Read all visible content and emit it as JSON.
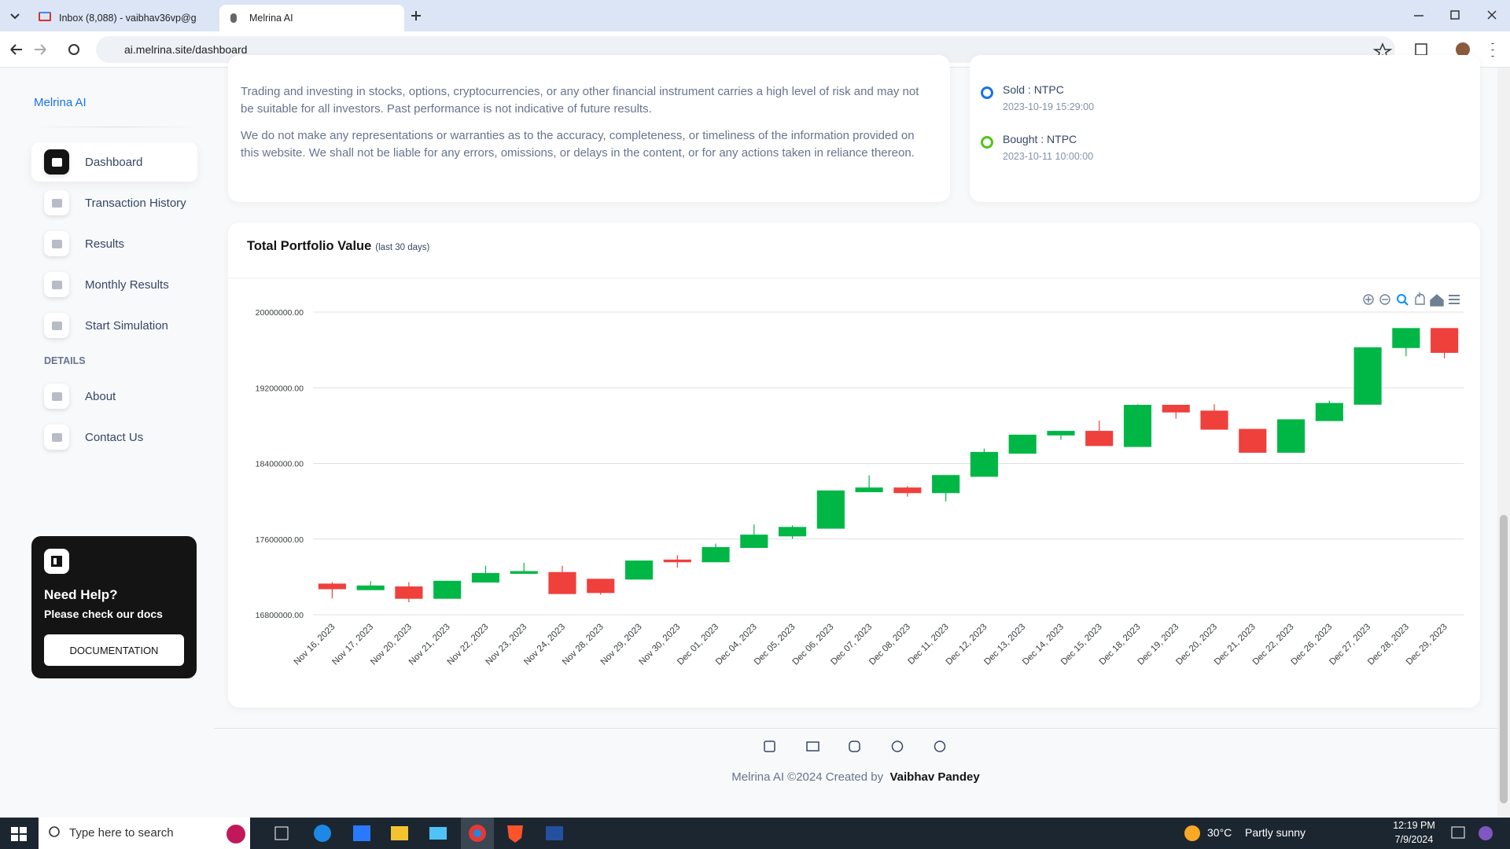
{
  "browser": {
    "tabs": [
      "Inbox (8,088) - vaibhav36vp@g",
      "Melrina AI"
    ],
    "url": "ai.melrina.site/dashboard"
  },
  "sidebar": {
    "brand": "Melrina AI",
    "menu": [
      "Dashboard",
      "Transaction History",
      "Results",
      "Monthly Results",
      "Start Simulation"
    ],
    "section": "DETAILS",
    "details": [
      "About",
      "Contact Us"
    ],
    "help": {
      "title": "Need Help?",
      "text": "Please check our docs",
      "button": "DOCUMENTATION"
    }
  },
  "disclaimer": [
    "Trading and investing in stocks, options, cryptocurrencies, or any other financial instrument carries a high level of risk and may not be suitable for all investors. Past performance is not indicative of future results.",
    "We do not make any representations or warranties as to the accuracy, completeness, or timeliness of the information provided on this website. We shall not be liable for any errors, omissions, or delays in the content, or for any actions taken in reliance thereon."
  ],
  "timeline": [
    {
      "label": "Sold : NTPC",
      "time": "2023-10-19 15:29:00"
    },
    {
      "label": "Bought : NTPC",
      "time": "2023-10-11 10:00:00"
    }
  ],
  "chart_data": {
    "type": "candlestick",
    "title": "Total Portfolio Value",
    "subtitle": "(last 30 days)",
    "categories": [
      "Nov 16, 2023",
      "Nov 17, 2023",
      "Nov 20, 2023",
      "Nov 21, 2023",
      "Nov 22, 2023",
      "Nov 23, 2023",
      "Nov 24, 2023",
      "Nov 28, 2023",
      "Nov 29, 2023",
      "Nov 30, 2023",
      "Dec 01, 2023",
      "Dec 04, 2023",
      "Dec 05, 2023",
      "Dec 06, 2023",
      "Dec 07, 2023",
      "Dec 08, 2023",
      "Dec 11, 2023",
      "Dec 12, 2023",
      "Dec 13, 2023",
      "Dec 14, 2023",
      "Dec 15, 2023",
      "Dec 18, 2023",
      "Dec 19, 2023",
      "Dec 20, 2023",
      "Dec 21, 2023",
      "Dec 22, 2023",
      "Dec 26, 2023",
      "Dec 27, 2023",
      "Dec 28, 2023",
      "Dec 29, 2023"
    ],
    "open": [
      17125000,
      17064000,
      17095000,
      16973000,
      17145000,
      17237000,
      17247000,
      17176000,
      17176000,
      17379000,
      17359000,
      17511000,
      17633000,
      17714000,
      18100000,
      18141000,
      18090000,
      18263000,
      18507000,
      18700000,
      18740000,
      18578000,
      19015000,
      18954000,
      18761000,
      18517000,
      18852000,
      19025000,
      19624000,
      19827000
    ],
    "high": [
      17145000,
      17155000,
      17145000,
      17155000,
      17318000,
      17349000,
      17318000,
      17176000,
      17369000,
      17430000,
      17552000,
      17755000,
      17745000,
      18110000,
      18273000,
      18161000,
      18273000,
      18557000,
      18700000,
      18740000,
      18852000,
      19025000,
      19015000,
      19025000,
      18761000,
      18862000,
      19065000,
      19624000,
      19827000,
      19827000
    ],
    "low": [
      16973000,
      17064000,
      16932000,
      16973000,
      17145000,
      17237000,
      17023000,
      17013000,
      17176000,
      17298000,
      17359000,
      17511000,
      17603000,
      17714000,
      18100000,
      18049000,
      17999000,
      18263000,
      18507000,
      18649000,
      18588000,
      18578000,
      18872000,
      18761000,
      18517000,
      18517000,
      18852000,
      19025000,
      19533000,
      19512000
    ],
    "close": [
      17074000,
      17105000,
      16973000,
      17155000,
      17237000,
      17257000,
      17023000,
      17034000,
      17369000,
      17359000,
      17511000,
      17643000,
      17724000,
      18110000,
      18141000,
      18090000,
      18273000,
      18517000,
      18700000,
      18740000,
      18588000,
      19015000,
      18943000,
      18761000,
      18517000,
      18862000,
      19035000,
      19624000,
      19827000,
      19573000
    ],
    "up_color": "#00b746",
    "down_color": "#ef403c",
    "ylim": [
      16800000,
      20000000
    ],
    "yticks": [
      {
        "value": 16800000,
        "label": "16800000.00"
      },
      {
        "value": 17600000,
        "label": "17600000.00"
      },
      {
        "value": 18400000,
        "label": "18400000.00"
      },
      {
        "value": 19200000,
        "label": "19200000.00"
      },
      {
        "value": 20000000,
        "label": "20000000.00"
      }
    ],
    "grid": true
  },
  "footer": {
    "text": "Melrina AI ©2024 Created by",
    "author": "Vaibhav Pandey"
  },
  "taskbar": {
    "search": "Type here to search",
    "temperature": "30°C",
    "weather": "Partly sunny",
    "time": "12:19 PM",
    "date": "7/9/2024"
  }
}
